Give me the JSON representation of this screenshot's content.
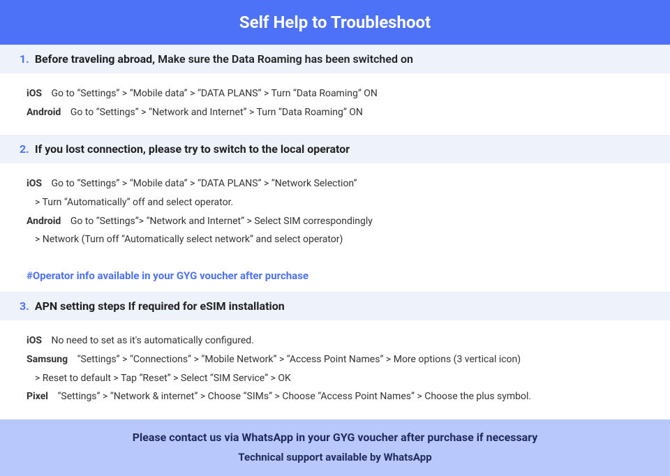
{
  "title": "Self Help to Troubleshoot",
  "colors": {
    "header_bg": "#4e72f7",
    "header_text": "#ffffff",
    "section_header_bg": "#eef3fb",
    "accent": "#4e72f7",
    "footer_bg": "#b8c7fc",
    "footer_text": "#1d2a5a",
    "body_text": "#333333"
  },
  "sections": [
    {
      "num": "1.",
      "title_bold": "Before traveling abroad,",
      "title_rest": " Make sure the Data Roaming has been switched on",
      "rows": [
        {
          "platform": "iOS",
          "text": "Go to “Settings” > “Mobile data” > “DATA PLANS” > Turn “Data Roaming” ON"
        },
        {
          "platform": "Android",
          "text": "Go to “Settings” > “Network and Internet” > Turn “Data Roaming” ON"
        }
      ]
    },
    {
      "num": "2.",
      "title_bold": "If you lost connection, please try to switch to the local operator",
      "title_rest": "",
      "rows": [
        {
          "platform": "iOS",
          "text": "Go to “Settings” > “Mobile data” > “DATA PLANS” > “Network Selection”"
        },
        {
          "continuation": "> Turn “Automatically” off and select operator."
        },
        {
          "platform": "Android",
          "text": "Go to “Settings”>  “Network and Internet” > Select SIM correspondingly"
        },
        {
          "continuation": "> Network (Turn off “Automatically select network” and select operator)"
        }
      ],
      "note": "#Operator info available in your GYG voucher after purchase"
    },
    {
      "num": "3.",
      "title_bold": "APN setting steps If required for eSIM installation",
      "title_rest": "",
      "rows": [
        {
          "platform": "iOS",
          "text": "No need to set as it's automatically configured."
        },
        {
          "platform": "Samsung",
          "text": "“Settings” > “Connections” > “Mobile Network” > “Access Point Names” > More options (3 vertical icon)"
        },
        {
          "continuation": "> Reset to default > Tap “Reset” > Select “SIM Service” > OK"
        },
        {
          "platform": "Pixel",
          "text": "“Settings” > “Network & internet” > Choose “SIMs” > Choose “Access Point Names” > Choose the plus symbol."
        }
      ]
    }
  ],
  "footer": {
    "line1": "Please contact us via WhatsApp  in your GYG voucher after purchase if necessary",
    "line2": "Technical support available by WhatsApp"
  }
}
